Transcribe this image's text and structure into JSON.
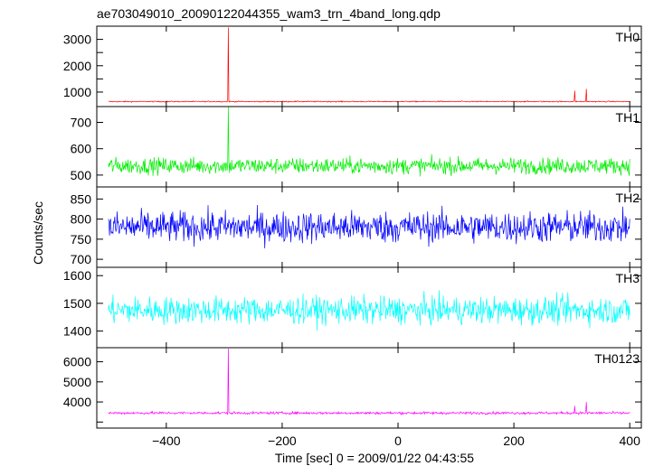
{
  "title": "ae703049010_20090122044355_wam3_trn_4band_long.qdp",
  "xlabel": "Time [sec] 0 = 2009/01/22 04:43:55",
  "ylabel": "Counts/sec",
  "chart_data": {
    "type": "line",
    "title": "ae703049010_20090122044355_wam3_trn_4band_long.qdp",
    "xlabel": "Time [sec] 0 = 2009/01/22 04:43:55",
    "ylabel": "Counts/sec",
    "xlim": [
      -520,
      420
    ],
    "x_ticks": [
      -400,
      -200,
      0,
      200,
      400
    ],
    "x_range_data": [
      -500,
      400
    ],
    "grid": false,
    "series": [
      {
        "name": "TH0",
        "color": "#ff0000",
        "ylim": [
          450,
          3500
        ],
        "y_ticks": [
          1000,
          1500,
          2000,
          2500,
          3000
        ],
        "y_tick_labels": [
          "1000",
          "",
          "2000",
          "",
          "3000"
        ],
        "baseline": 640,
        "noise": 15,
        "spikes": [
          {
            "x": -293,
            "y": 3450
          },
          {
            "x": 305,
            "y": 1050
          },
          {
            "x": 325,
            "y": 1120
          }
        ]
      },
      {
        "name": "TH1",
        "color": "#00ee00",
        "ylim": [
          455,
          760
        ],
        "y_ticks": [
          500,
          600,
          700
        ],
        "y_tick_labels": [
          "500",
          "600",
          "700"
        ],
        "baseline": 535,
        "noise": 22,
        "spikes": [
          {
            "x": -293,
            "y": 760
          }
        ]
      },
      {
        "name": "TH2",
        "color": "#0000ff",
        "ylim": [
          680,
          880
        ],
        "y_ticks": [
          700,
          750,
          800,
          850
        ],
        "y_tick_labels": [
          "700",
          "750",
          "800",
          "850"
        ],
        "baseline": 780,
        "noise": 28,
        "spikes": []
      },
      {
        "name": "TH3",
        "color": "#00ffff",
        "ylim": [
          1340,
          1630
        ],
        "y_ticks": [
          1400,
          1500,
          1600
        ],
        "y_tick_labels": [
          "1400",
          "1500",
          "1600"
        ],
        "baseline": 1475,
        "noise": 35,
        "spikes": []
      },
      {
        "name": "TH0123",
        "color": "#ff00ff",
        "ylim": [
          2700,
          6700
        ],
        "y_ticks": [
          3000,
          4000,
          5000,
          6000
        ],
        "y_tick_labels": [
          "",
          "4000",
          "5000",
          "6000"
        ],
        "baseline": 3450,
        "noise": 45,
        "spikes": [
          {
            "x": -293,
            "y": 6650
          },
          {
            "x": 305,
            "y": 3800
          },
          {
            "x": 325,
            "y": 4000
          }
        ]
      }
    ]
  }
}
